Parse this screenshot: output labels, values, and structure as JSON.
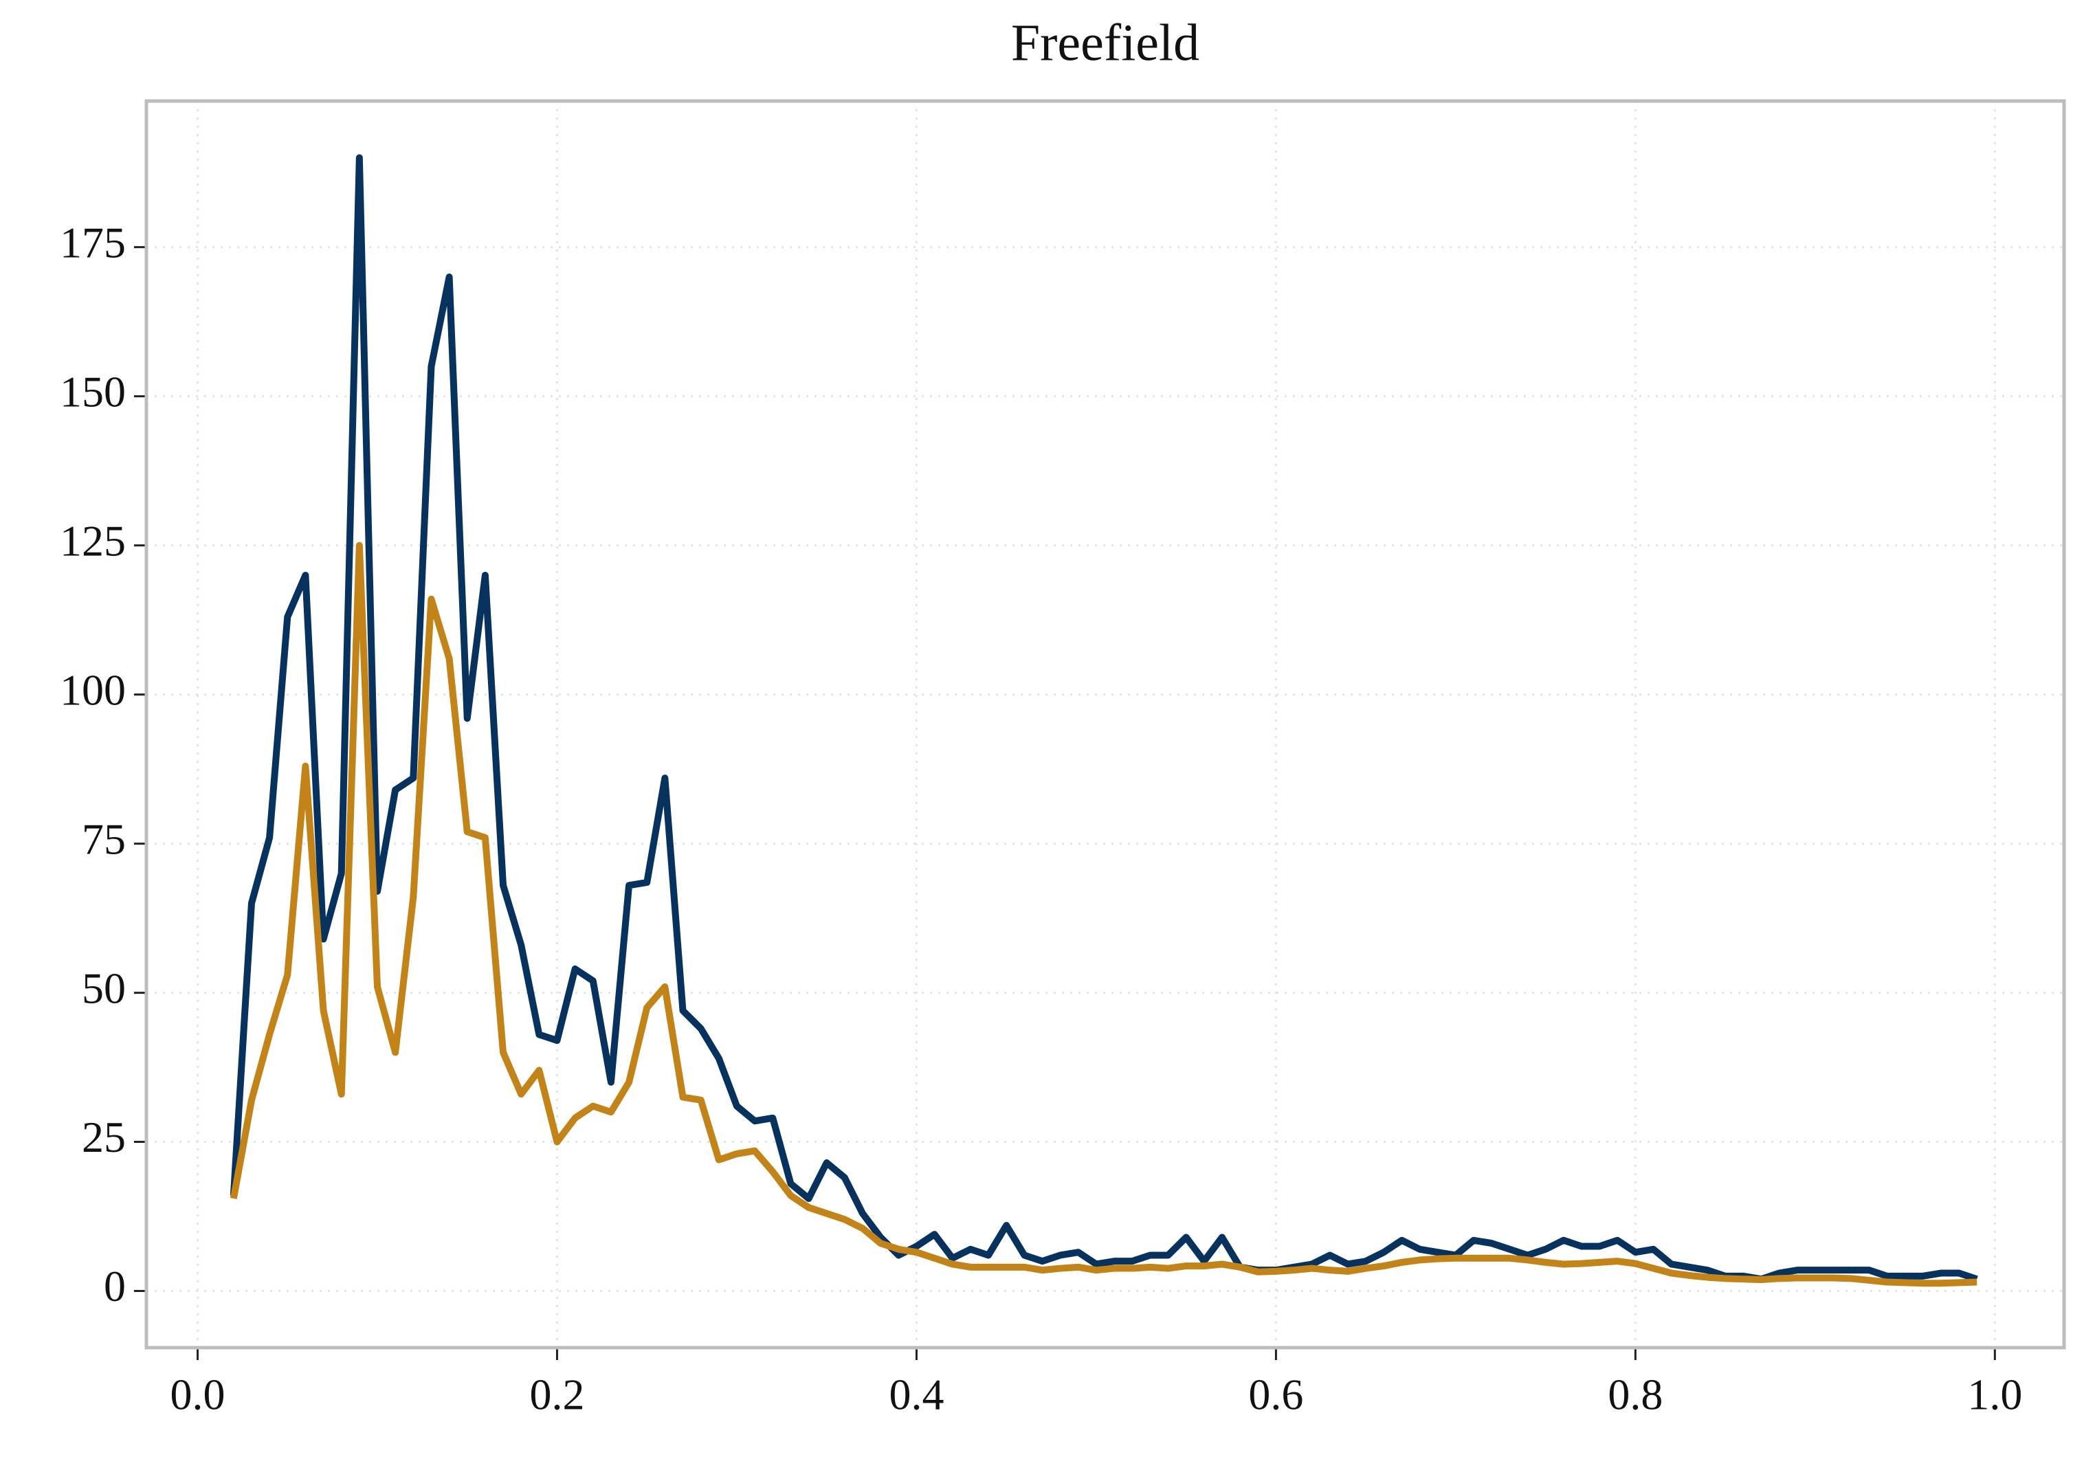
{
  "chart_data": {
    "type": "line",
    "title": "Freefield",
    "x": [
      0.02,
      0.03,
      0.04,
      0.05,
      0.06,
      0.07,
      0.08,
      0.09,
      0.1,
      0.11,
      0.12,
      0.13,
      0.14,
      0.15,
      0.16,
      0.17,
      0.18,
      0.19,
      0.2,
      0.21,
      0.22,
      0.23,
      0.24,
      0.25,
      0.26,
      0.27,
      0.28,
      0.29,
      0.3,
      0.31,
      0.32,
      0.33,
      0.34,
      0.35,
      0.36,
      0.37,
      0.38,
      0.39,
      0.4,
      0.41,
      0.42,
      0.43,
      0.44,
      0.45,
      0.46,
      0.47,
      0.48,
      0.49,
      0.5,
      0.51,
      0.52,
      0.53,
      0.54,
      0.55,
      0.56,
      0.57,
      0.58,
      0.59,
      0.6,
      0.61,
      0.62,
      0.63,
      0.64,
      0.65,
      0.66,
      0.67,
      0.68,
      0.69,
      0.7,
      0.71,
      0.72,
      0.73,
      0.74,
      0.75,
      0.76,
      0.77,
      0.78,
      0.79,
      0.8,
      0.81,
      0.82,
      0.83,
      0.84,
      0.85,
      0.86,
      0.87,
      0.88,
      0.89,
      0.9,
      0.91,
      0.92,
      0.93,
      0.94,
      0.95,
      0.96,
      0.97,
      0.98,
      0.99
    ],
    "series": [
      {
        "color": "#08325e",
        "values": [
          16,
          65,
          76,
          113,
          120,
          59,
          70,
          190,
          67,
          84,
          86,
          155,
          170,
          96,
          120,
          68,
          58,
          43,
          42,
          54,
          52,
          35,
          68,
          68.5,
          86,
          47,
          44,
          39,
          31,
          28.5,
          29,
          18,
          15.5,
          21.5,
          19,
          13,
          9,
          6,
          7.5,
          9.5,
          5.5,
          7,
          6,
          11,
          6,
          5,
          6,
          6.5,
          4.5,
          5,
          5,
          6,
          6,
          9,
          5,
          9,
          4,
          3.5,
          3.5,
          4,
          4.5,
          6,
          4.5,
          5,
          6.5,
          8.5,
          7,
          6.5,
          6,
          8.5,
          8,
          7,
          6,
          7,
          8.5,
          7.5,
          7.5,
          8.5,
          6.5,
          7,
          4.5,
          4,
          3.5,
          2.5,
          2.5,
          2,
          3,
          3.5,
          3.5,
          3.5,
          3.5,
          3.5,
          2.5,
          2.5,
          2.5,
          3,
          3,
          2
        ]
      },
      {
        "color": "#c28418",
        "values": [
          15.5,
          32,
          43,
          53,
          88,
          47,
          33,
          125,
          51,
          40,
          66,
          116,
          106,
          77,
          76,
          40,
          33,
          37,
          25,
          29,
          31,
          30,
          35,
          47.5,
          51,
          32.5,
          32,
          22,
          23,
          23.5,
          20,
          16,
          14,
          13,
          12,
          10.5,
          8,
          7,
          6.5,
          5.5,
          4.5,
          4,
          4,
          4,
          4,
          3.5,
          3.8,
          4,
          3.5,
          3.8,
          3.8,
          4,
          3.8,
          4.2,
          4.2,
          4.5,
          4,
          3.2,
          3.3,
          3.5,
          3.8,
          3.5,
          3.3,
          3.8,
          4.2,
          4.8,
          5.2,
          5.4,
          5.5,
          5.5,
          5.5,
          5.5,
          5.2,
          4.8,
          4.5,
          4.6,
          4.8,
          5,
          4.6,
          3.8,
          3,
          2.6,
          2.3,
          2.1,
          2,
          1.9,
          2.1,
          2.2,
          2.2,
          2.2,
          2.1,
          1.8,
          1.5,
          1.4,
          1.3,
          1.3,
          1.4,
          1.5
        ]
      }
    ],
    "xlim": [
      -0.0285,
      1.0385
    ],
    "xticks": [
      {
        "value": 0,
        "label": "0.0"
      },
      0.2,
      0.4,
      0.6,
      0.8,
      {
        "value": 1,
        "label": "1.0"
      }
    ],
    "ylim": [
      -9.5,
      199.5
    ],
    "yticks": [
      0,
      25,
      50,
      75,
      100,
      125,
      150,
      175
    ],
    "grid": true
  }
}
